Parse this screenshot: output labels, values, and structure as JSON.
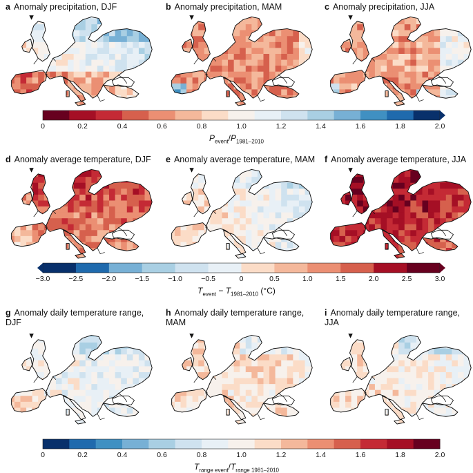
{
  "rows": [
    {
      "panels": [
        {
          "letter": "a",
          "title": "Anomaly precipitation, DJF",
          "pattern": "p_djf"
        },
        {
          "letter": "b",
          "title": "Anomaly precipitation, MAM",
          "pattern": "p_mam"
        },
        {
          "letter": "c",
          "title": "Anomaly precipitation, JJA",
          "pattern": "p_jja"
        }
      ],
      "colorbar": {
        "ticks": [
          "0",
          "0.2",
          "0.4",
          "0.6",
          "0.8",
          "1.0",
          "1.2",
          "1.4",
          "1.6",
          "1.8",
          "2.0"
        ],
        "tick_values": [
          0,
          0.2,
          0.4,
          0.6,
          0.8,
          1.0,
          1.2,
          1.4,
          1.6,
          1.8,
          2.0
        ],
        "range": [
          0,
          2.0
        ],
        "extend": "max",
        "reverse": false,
        "label": {
          "p1": "P",
          "s1": "event",
          "op": "/",
          "p2": "P",
          "s2": "1981–2010",
          "unit": ""
        }
      }
    },
    {
      "panels": [
        {
          "letter": "d",
          "title": "Anomaly average temperature, DJF",
          "pattern": "t_djf"
        },
        {
          "letter": "e",
          "title": "Anomaly average temperature, MAM",
          "pattern": "t_mam"
        },
        {
          "letter": "f",
          "title": "Anomaly average temperature, JJA",
          "pattern": "t_jja"
        }
      ],
      "colorbar": {
        "ticks": [
          "−3.0",
          "−2.5",
          "−2.0",
          "−1.5",
          "−1.0",
          "−0.5",
          "0",
          "0.5",
          "1.0",
          "1.5",
          "2.0",
          "2.5",
          "3.0"
        ],
        "tick_values": [
          -3.0,
          -2.5,
          -2.0,
          -1.5,
          -1.0,
          -0.5,
          0,
          0.5,
          1.0,
          1.5,
          2.0,
          2.5,
          3.0
        ],
        "range": [
          -3.0,
          3.0
        ],
        "extend": "both",
        "reverse": true,
        "label": {
          "p1": "T",
          "s1": "event",
          "op": " − ",
          "p2": "T",
          "s2": "1981–2010",
          "unit": " (°C)"
        }
      }
    },
    {
      "panels": [
        {
          "letter": "g",
          "title": "Anomaly daily temperature range, DJF",
          "pattern": "r_djf"
        },
        {
          "letter": "h",
          "title": "Anomaly daily temperature range, MAM",
          "pattern": "r_mam"
        },
        {
          "letter": "i",
          "title": "Anomaly daily temperature range, JJA",
          "pattern": "r_jja"
        }
      ],
      "colorbar": {
        "ticks": [
          "0",
          "0.2",
          "0.4",
          "0.6",
          "0.8",
          "1.0",
          "1.2",
          "1.4",
          "1.6",
          "1.8",
          "2.0"
        ],
        "tick_values": [
          0,
          0.2,
          0.4,
          0.6,
          0.8,
          1.0,
          1.2,
          1.4,
          1.6,
          1.8,
          2.0
        ],
        "range": [
          0,
          2.0
        ],
        "extend": "none",
        "reverse": true,
        "label": {
          "p1": "T",
          "s1": "range event",
          "op": "/",
          "p2": "T",
          "s2": "range 1981–2010",
          "unit": ""
        }
      }
    }
  ],
  "palette": [
    "#67001f",
    "#a50f25",
    "#c42a35",
    "#d6604d",
    "#eb8f73",
    "#f4b89b",
    "#fbdcc7",
    "#f7f1ec",
    "#e8f0f6",
    "#cfe2ef",
    "#a9cfe3",
    "#77b0d5",
    "#4090c2",
    "#1f6aad",
    "#08306b"
  ]
}
